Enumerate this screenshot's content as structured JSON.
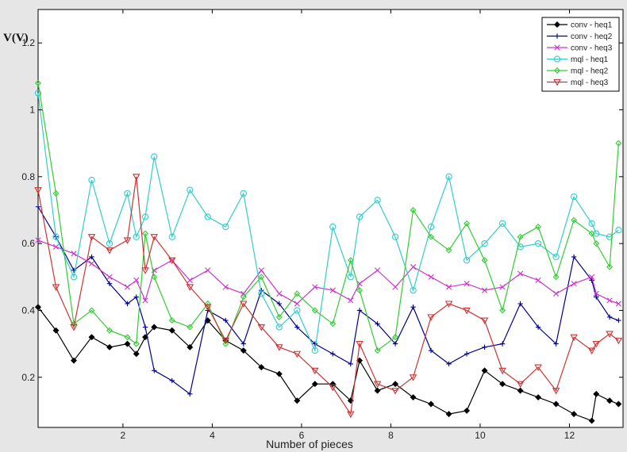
{
  "chart_data": {
    "type": "line",
    "title": "",
    "xlabel": "Number of pieces",
    "ylabel": "V(V)",
    "xlim": [
      0.1,
      13.2
    ],
    "ylim": [
      0.05,
      1.3
    ],
    "xticks": [
      2,
      4,
      6,
      8,
      10,
      12
    ],
    "xtick_labels": [
      "2",
      "4",
      "6",
      "8",
      "10",
      "12"
    ],
    "yticks": [
      0.2,
      0.4,
      0.6,
      0.8,
      1,
      1.2
    ],
    "ytick_labels": [
      "0.2",
      "0.4",
      "0.6",
      "0.8",
      "1",
      "1.2"
    ],
    "grid": false,
    "legend_position": "top-right",
    "series": [
      {
        "name": "conv - heq1",
        "color": "#000000",
        "marker": "diamond",
        "x": [
          0.1,
          0.5,
          0.9,
          1.3,
          1.7,
          2.1,
          2.3,
          2.5,
          2.7,
          3.1,
          3.5,
          3.9,
          4.3,
          4.7,
          5.1,
          5.5,
          5.9,
          6.3,
          6.7,
          7.1,
          7.3,
          7.7,
          8.1,
          8.5,
          8.9,
          9.3,
          9.7,
          10.1,
          10.5,
          10.9,
          11.3,
          11.7,
          12.1,
          12.5,
          12.6,
          12.9,
          13.1
        ],
        "values": [
          0.41,
          0.34,
          0.25,
          0.32,
          0.29,
          0.3,
          0.27,
          0.32,
          0.35,
          0.34,
          0.29,
          0.37,
          0.31,
          0.28,
          0.23,
          0.21,
          0.13,
          0.18,
          0.18,
          0.13,
          0.25,
          0.16,
          0.18,
          0.14,
          0.12,
          0.09,
          0.1,
          0.22,
          0.18,
          0.16,
          0.14,
          0.12,
          0.09,
          0.07,
          0.15,
          0.13,
          0.12
        ]
      },
      {
        "name": "conv - heq2",
        "color": "#00008b",
        "marker": "plus",
        "x": [
          0.1,
          0.5,
          0.9,
          1.3,
          1.7,
          2.1,
          2.3,
          2.5,
          2.7,
          3.1,
          3.5,
          3.9,
          4.3,
          4.7,
          5.1,
          5.5,
          5.9,
          6.3,
          6.7,
          7.1,
          7.3,
          7.7,
          8.1,
          8.5,
          8.9,
          9.3,
          9.7,
          10.1,
          10.5,
          10.9,
          11.3,
          11.7,
          12.1,
          12.5,
          12.6,
          12.9,
          13.1
        ],
        "values": [
          0.71,
          0.62,
          0.52,
          0.56,
          0.48,
          0.42,
          0.44,
          0.35,
          0.22,
          0.19,
          0.15,
          0.4,
          0.37,
          0.3,
          0.46,
          0.42,
          0.35,
          0.3,
          0.27,
          0.24,
          0.4,
          0.36,
          0.3,
          0.41,
          0.28,
          0.24,
          0.27,
          0.29,
          0.3,
          0.42,
          0.35,
          0.3,
          0.56,
          0.49,
          0.44,
          0.38,
          0.37
        ]
      },
      {
        "name": "conv - heq3",
        "color": "#cc33cc",
        "marker": "x",
        "x": [
          0.1,
          0.5,
          0.9,
          1.3,
          1.7,
          2.1,
          2.3,
          2.5,
          2.7,
          3.1,
          3.5,
          3.9,
          4.3,
          4.7,
          5.1,
          5.5,
          5.9,
          6.3,
          6.7,
          7.1,
          7.3,
          7.7,
          8.1,
          8.5,
          8.9,
          9.3,
          9.7,
          10.1,
          10.5,
          10.9,
          11.3,
          11.7,
          12.1,
          12.5,
          12.6,
          12.9,
          13.1
        ],
        "values": [
          0.61,
          0.59,
          0.57,
          0.54,
          0.5,
          0.47,
          0.49,
          0.43,
          0.52,
          0.55,
          0.49,
          0.52,
          0.47,
          0.45,
          0.52,
          0.45,
          0.42,
          0.47,
          0.46,
          0.43,
          0.48,
          0.52,
          0.47,
          0.53,
          0.5,
          0.47,
          0.48,
          0.46,
          0.47,
          0.51,
          0.49,
          0.45,
          0.48,
          0.5,
          0.45,
          0.43,
          0.42
        ]
      },
      {
        "name": "mql - heq1",
        "color": "#33cccc",
        "marker": "circle",
        "x": [
          0.1,
          0.5,
          0.9,
          1.3,
          1.7,
          2.1,
          2.3,
          2.5,
          2.7,
          3.1,
          3.5,
          3.9,
          4.3,
          4.7,
          5.1,
          5.5,
          5.9,
          6.3,
          6.7,
          7.1,
          7.3,
          7.7,
          8.1,
          8.5,
          8.9,
          9.3,
          9.7,
          10.1,
          10.5,
          10.9,
          11.3,
          11.7,
          12.1,
          12.5,
          12.6,
          12.9,
          13.1
        ],
        "values": [
          1.05,
          0.62,
          0.5,
          0.79,
          0.6,
          0.75,
          0.62,
          0.68,
          0.86,
          0.62,
          0.76,
          0.68,
          0.65,
          0.75,
          0.45,
          0.35,
          0.4,
          0.28,
          0.65,
          0.5,
          0.68,
          0.73,
          0.62,
          0.46,
          0.65,
          0.8,
          0.55,
          0.6,
          0.66,
          0.59,
          0.6,
          0.56,
          0.74,
          0.66,
          0.63,
          0.62,
          0.64
        ]
      },
      {
        "name": "mql - heq2",
        "color": "#33cc33",
        "marker": "diamond",
        "x": [
          0.1,
          0.5,
          0.9,
          1.3,
          1.7,
          2.1,
          2.3,
          2.5,
          2.7,
          3.1,
          3.5,
          3.9,
          4.3,
          4.7,
          5.1,
          5.5,
          5.9,
          6.3,
          6.7,
          7.1,
          7.3,
          7.7,
          8.1,
          8.5,
          8.9,
          9.3,
          9.7,
          10.1,
          10.5,
          10.9,
          11.3,
          11.7,
          12.1,
          12.5,
          12.6,
          12.9,
          13.1
        ],
        "values": [
          1.08,
          0.75,
          0.36,
          0.4,
          0.34,
          0.32,
          0.3,
          0.63,
          0.5,
          0.37,
          0.35,
          0.42,
          0.3,
          0.44,
          0.5,
          0.38,
          0.45,
          0.4,
          0.36,
          0.55,
          0.46,
          0.28,
          0.32,
          0.7,
          0.62,
          0.58,
          0.66,
          0.55,
          0.4,
          0.62,
          0.65,
          0.5,
          0.67,
          0.63,
          0.6,
          0.53,
          0.9
        ]
      },
      {
        "name": "mql - heq3",
        "color": "#cc3333",
        "marker": "triangle-down",
        "x": [
          0.1,
          0.5,
          0.9,
          1.3,
          1.7,
          2.1,
          2.3,
          2.5,
          2.7,
          3.1,
          3.5,
          3.9,
          4.3,
          4.7,
          5.1,
          5.5,
          5.9,
          6.3,
          6.7,
          7.1,
          7.3,
          7.7,
          8.1,
          8.5,
          8.9,
          9.3,
          9.7,
          10.1,
          10.5,
          10.9,
          11.3,
          11.7,
          12.1,
          12.5,
          12.6,
          12.9,
          13.1
        ],
        "values": [
          0.76,
          0.47,
          0.35,
          0.62,
          0.58,
          0.61,
          0.8,
          0.52,
          0.62,
          0.55,
          0.47,
          0.41,
          0.31,
          0.42,
          0.35,
          0.29,
          0.27,
          0.22,
          0.17,
          0.09,
          0.3,
          0.18,
          0.16,
          0.2,
          0.38,
          0.42,
          0.4,
          0.37,
          0.22,
          0.18,
          0.23,
          0.16,
          0.32,
          0.28,
          0.3,
          0.33,
          0.31
        ]
      }
    ]
  }
}
